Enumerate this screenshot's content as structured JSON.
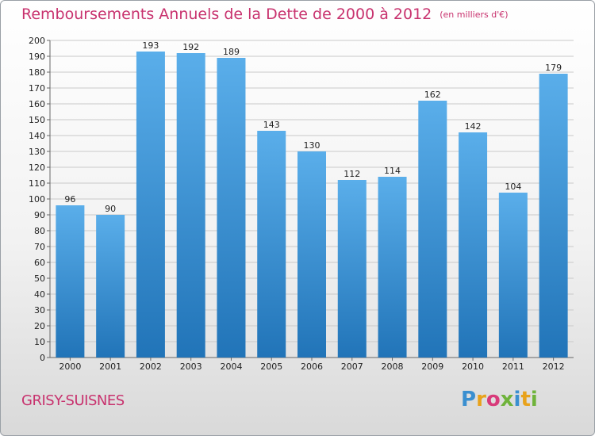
{
  "header": {
    "title": "Remboursements Annuels de la Dette de 2000 à 2012",
    "unit": "(en milliers d'€)"
  },
  "footer": {
    "commune": "GRISY-SUISNES",
    "logo_letters": [
      "P",
      "r",
      "o",
      "x",
      "i",
      "t",
      "i"
    ],
    "logo_colors": [
      "#3a8fd0",
      "#e8a21b",
      "#d83a7a",
      "#6fb33b",
      "#3a8fd0",
      "#e8a21b",
      "#6fb33b"
    ]
  },
  "colors": {
    "accent": "#c8326e",
    "bar_top": "#5aaeea",
    "bar_bottom": "#2174b8",
    "grid": "#c9c9c9"
  },
  "chart_data": {
    "type": "bar",
    "title": "Remboursements Annuels de la Dette de 2000 à 2012",
    "subtitle": "(en milliers d'€)",
    "categories": [
      "2000",
      "2001",
      "2002",
      "2003",
      "2004",
      "2005",
      "2006",
      "2007",
      "2008",
      "2009",
      "2010",
      "2011",
      "2012"
    ],
    "values": [
      96,
      90,
      193,
      192,
      189,
      143,
      130,
      112,
      114,
      162,
      142,
      104,
      179
    ],
    "ylim": [
      0,
      200
    ],
    "ytick_step": 10,
    "grid": true,
    "data_labels": true
  }
}
